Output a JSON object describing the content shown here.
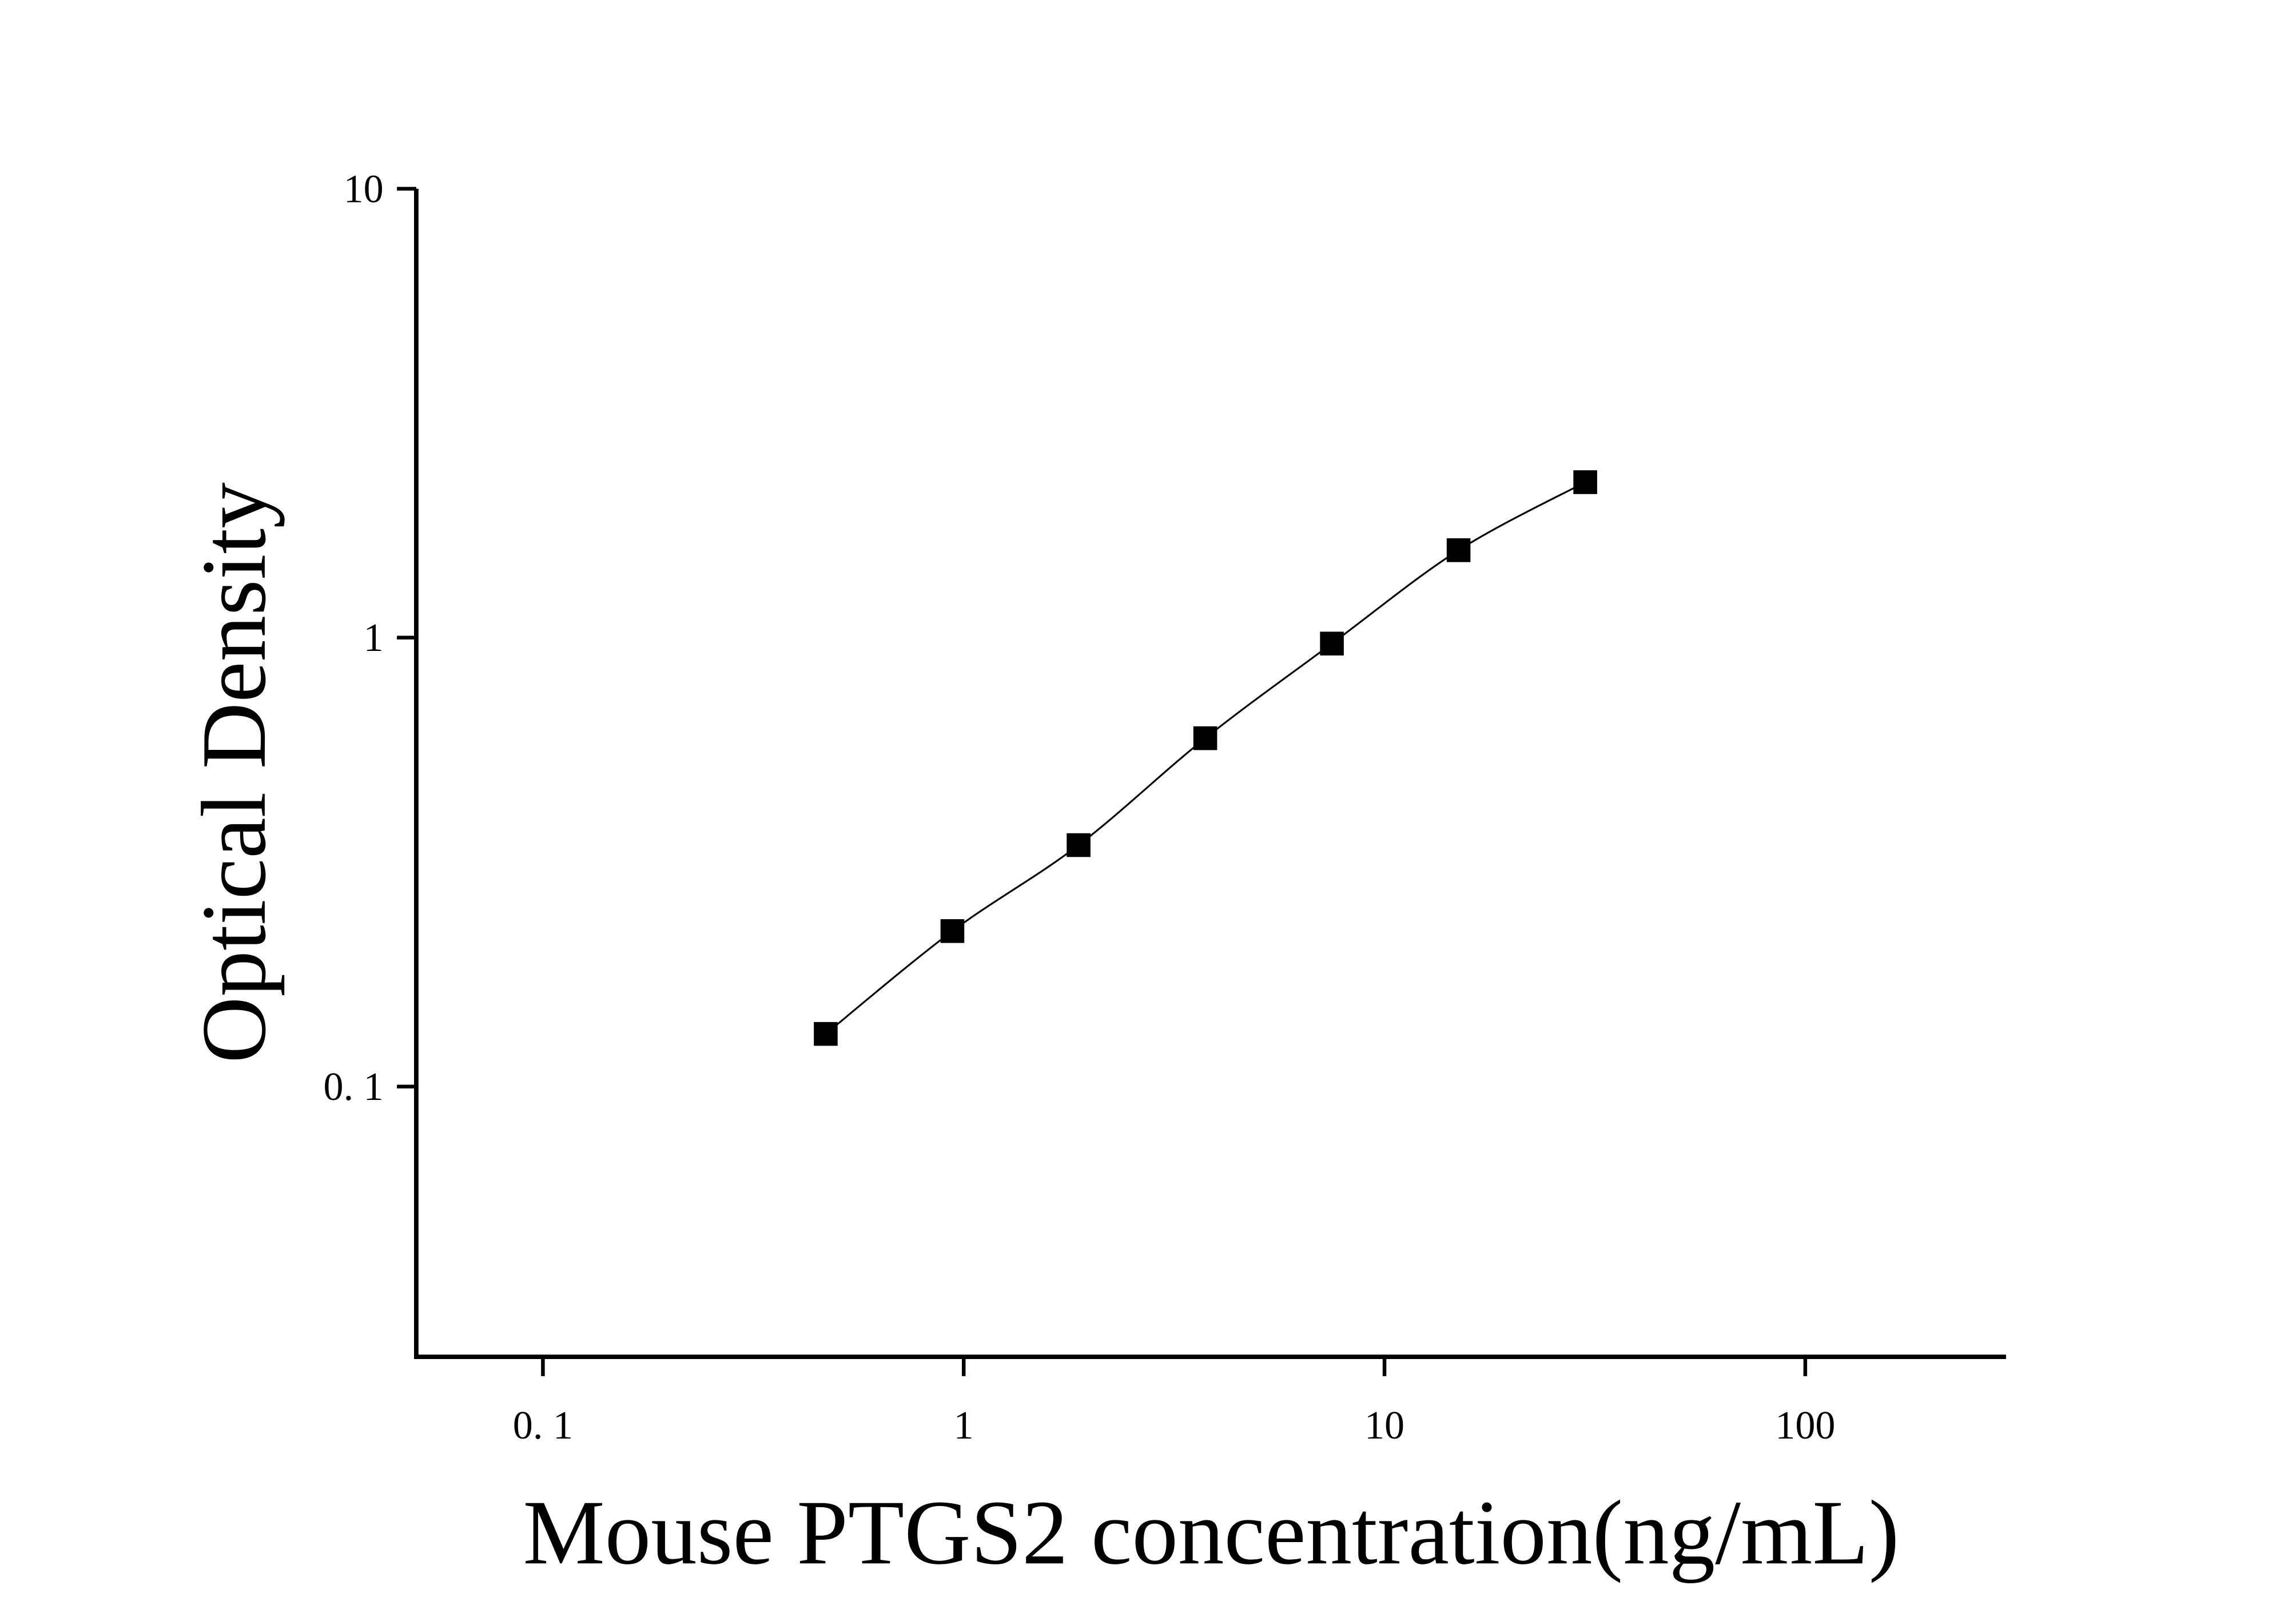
{
  "chart_data": {
    "type": "scatter",
    "x_label": "Mouse PTGS2 concentration(ng/mL)",
    "y_label": "Optical Density",
    "x": [
      0.47,
      0.94,
      1.875,
      3.75,
      7.5,
      15,
      30
    ],
    "series": [
      {
        "color": "#000000",
        "values": [
          0.131,
          0.222,
          0.345,
          0.597,
          0.97,
          1.566,
          2.22
        ]
      }
    ],
    "xlim": [
      0.05,
      300
    ],
    "ylim": [
      0.025,
      10
    ],
    "xticks": [
      {
        "value": 0.1,
        "label": "0. 1"
      },
      1,
      10,
      100
    ],
    "yticks": [
      {
        "value": 0.1,
        "label": "0. 1"
      },
      1,
      10
    ],
    "xscale": "log",
    "yscale": "log",
    "fit_curve": true,
    "grid": false
  }
}
